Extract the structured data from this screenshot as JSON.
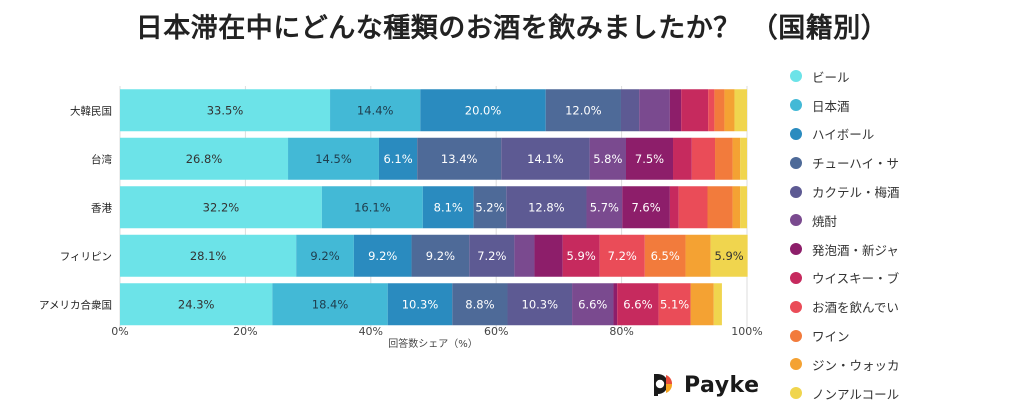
{
  "title": "日本滞在中にどんな種類のお酒を飲みましたか？ （国籍別）",
  "brand": "Payke",
  "chart_data": {
    "type": "bar",
    "orientation": "horizontal",
    "stacked": true,
    "xlabel": "回答数シェア（%）",
    "xlim": [
      0,
      100
    ],
    "xticks": [
      "0%",
      "20%",
      "40%",
      "60%",
      "80%",
      "100%"
    ],
    "legend_position": "right",
    "categories": [
      "大韓民国",
      "台湾",
      "香港",
      "フィリピン",
      "アメリカ合衆国"
    ],
    "series": [
      {
        "name": "ビール",
        "color": "#6ce3e8",
        "values": [
          33.5,
          26.8,
          32.2,
          28.1,
          24.3
        ]
      },
      {
        "name": "日本酒",
        "color": "#43b9d6",
        "values": [
          14.4,
          14.5,
          16.1,
          9.2,
          18.4
        ]
      },
      {
        "name": "ハイボール",
        "color": "#2a8bbf",
        "values": [
          20.0,
          6.1,
          8.1,
          9.2,
          10.3
        ]
      },
      {
        "name": "チューハイ・サ",
        "color": "#4e6a98",
        "values": [
          12.0,
          13.4,
          5.2,
          9.2,
          8.8
        ]
      },
      {
        "name": "カクテル・梅酒",
        "color": "#5d5a93",
        "values": [
          2.9,
          14.1,
          12.8,
          7.2,
          10.3
        ]
      },
      {
        "name": "焼酎",
        "color": "#7a4a8f",
        "values": [
          4.9,
          5.8,
          5.7,
          3.2,
          6.6
        ]
      },
      {
        "name": "発泡酒・新ジャ",
        "color": "#8d1e6a",
        "values": [
          1.8,
          7.5,
          7.6,
          4.5,
          0.6
        ]
      },
      {
        "name": "ウイスキー・ブ",
        "color": "#c62a5e",
        "values": [
          4.3,
          3.0,
          1.4,
          5.9,
          6.6
        ]
      },
      {
        "name": "お酒を飲んでい",
        "color": "#ea4c58",
        "values": [
          1.0,
          3.7,
          4.6,
          7.2,
          5.1
        ]
      },
      {
        "name": "ワイン",
        "color": "#f27b3c",
        "values": [
          1.6,
          2.8,
          4.0,
          6.5,
          0.0
        ]
      },
      {
        "name": "ジン・ウォッカ",
        "color": "#f4a233",
        "values": [
          1.6,
          1.2,
          1.2,
          4.0,
          3.7
        ]
      },
      {
        "name": "ノンアルコール",
        "color": "#f0d54e",
        "values": [
          2.0,
          1.1,
          1.1,
          5.9,
          1.3
        ]
      }
    ],
    "data_labels": [
      [
        "33.5%",
        "14.4%",
        "20.0%",
        "12.0%",
        "",
        "",
        "",
        "",
        "",
        "",
        "",
        ""
      ],
      [
        "26.8%",
        "14.5%",
        "6.1%",
        "13.4%",
        "14.1%",
        "5.8%",
        "7.5%",
        "",
        "",
        "",
        "",
        ""
      ],
      [
        "32.2%",
        "16.1%",
        "8.1%",
        "5.2%",
        "12.8%",
        "5.7%",
        "7.6%",
        "",
        "",
        "",
        "",
        ""
      ],
      [
        "28.1%",
        "9.2%",
        "9.2%",
        "9.2%",
        "7.2%",
        "",
        "",
        "5.9%",
        "7.2%",
        "6.5%",
        "",
        "5.9%"
      ],
      [
        "24.3%",
        "18.4%",
        "10.3%",
        "8.8%",
        "10.3%",
        "6.6%",
        "",
        "6.6%",
        "5.1%",
        "",
        "",
        ""
      ]
    ]
  }
}
